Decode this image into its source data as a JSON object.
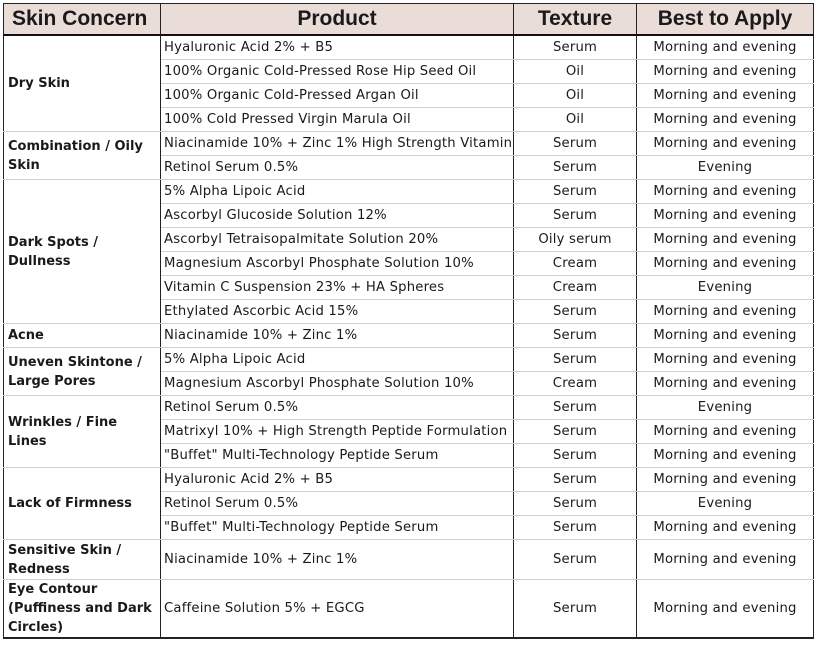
{
  "header": {
    "concern": "Skin Concern",
    "product": "Product",
    "texture": "Texture",
    "apply": "Best to Apply"
  },
  "groups": [
    {
      "concern": "Dry Skin",
      "rows": [
        {
          "product": "Hyaluronic Acid 2% + B5",
          "texture": "Serum",
          "apply": "Morning and evening"
        },
        {
          "product": "100% Organic Cold-Pressed Rose Hip Seed Oil",
          "texture": "Oil",
          "apply": "Morning and evening"
        },
        {
          "product": "100% Organic Cold-Pressed Argan Oil",
          "texture": "Oil",
          "apply": "Morning and evening"
        },
        {
          "product": "100% Cold Pressed Virgin Marula Oil",
          "texture": "Oil",
          "apply": "Morning and evening"
        }
      ]
    },
    {
      "concern": "Combination / Oily Skin",
      "rows": [
        {
          "product": "Niacinamide 10% + Zinc 1% High Strength Vitamin",
          "texture": "Serum",
          "apply": "Morning and evening"
        },
        {
          "product": "Retinol Serum 0.5%",
          "texture": "Serum",
          "apply": "Evening"
        }
      ]
    },
    {
      "concern": "Dark Spots / Dullness",
      "rows": [
        {
          "product": "5% Alpha Lipoic Acid",
          "texture": "Serum",
          "apply": "Morning and evening"
        },
        {
          "product": "Ascorbyl Glucoside Solution 12%",
          "texture": "Serum",
          "apply": "Morning and evening"
        },
        {
          "product": "Ascorbyl Tetraisopalmitate Solution 20%",
          "texture": "Oily serum",
          "apply": "Morning and evening"
        },
        {
          "product": "Magnesium Ascorbyl Phosphate Solution 10%",
          "texture": "Cream",
          "apply": "Morning and evening"
        },
        {
          "product": "Vitamin C Suspension 23% + HA Spheres",
          "texture": "Cream",
          "apply": "Evening"
        },
        {
          "product": "Ethylated Ascorbic Acid 15%",
          "texture": "Serum",
          "apply": "Morning and evening"
        }
      ]
    },
    {
      "concern": "Acne",
      "rows": [
        {
          "product": "Niacinamide 10% + Zinc 1%",
          "texture": "Serum",
          "apply": "Morning and evening"
        }
      ]
    },
    {
      "concern": "Uneven Skintone / Large Pores",
      "rows": [
        {
          "product": "5% Alpha Lipoic Acid",
          "texture": "Serum",
          "apply": "Morning and evening"
        },
        {
          "product": "Magnesium Ascorbyl Phosphate Solution 10%",
          "texture": "Cream",
          "apply": "Morning and evening"
        }
      ]
    },
    {
      "concern": "Wrinkles / Fine Lines",
      "rows": [
        {
          "product": "Retinol Serum 0.5%",
          "texture": "Serum",
          "apply": "Evening"
        },
        {
          "product": "Matrixyl 10% + High Strength Peptide Formulation",
          "texture": "Serum",
          "apply": "Morning and evening"
        },
        {
          "product": "\"Buffet\" Multi-Technology Peptide Serum",
          "texture": "Serum",
          "apply": "Morning and evening"
        }
      ]
    },
    {
      "concern": "Lack of Firmness",
      "rows": [
        {
          "product": "Hyaluronic Acid 2% + B5",
          "texture": "Serum",
          "apply": "Morning and evening"
        },
        {
          "product": "Retinol Serum 0.5%",
          "texture": "Serum",
          "apply": "Evening"
        },
        {
          "product": "\"Buffet\" Multi-Technology Peptide Serum",
          "texture": "Serum",
          "apply": "Morning and evening"
        }
      ]
    },
    {
      "concern": "Sensitive Skin / Redness",
      "rows": [
        {
          "product": "Niacinamide 10% + Zinc 1%",
          "texture": "Serum",
          "apply": "Morning and evening"
        }
      ]
    },
    {
      "concern": "Eye Contour (Puffiness and Dark Circles)",
      "rows": [
        {
          "product": "Caffeine Solution 5% + EGCG",
          "texture": "Serum",
          "apply": "Morning and evening"
        }
      ]
    }
  ]
}
